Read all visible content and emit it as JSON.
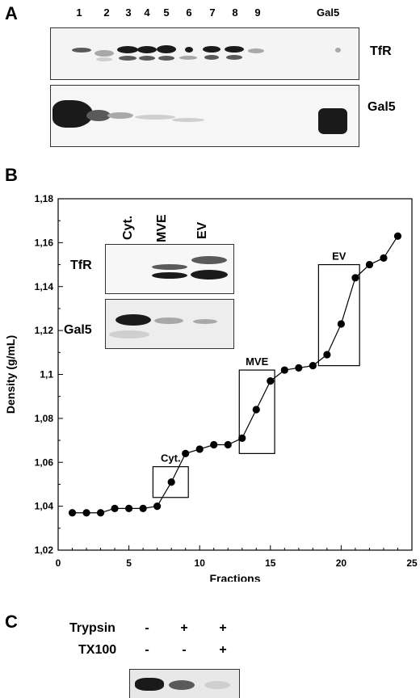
{
  "panel_a": {
    "letter": "A",
    "lanes": [
      "1",
      "2",
      "3",
      "4",
      "5",
      "6",
      "7",
      "8",
      "9"
    ],
    "control_lane": "Gal5",
    "blot_labels": [
      "TfR",
      "Gal5"
    ]
  },
  "panel_b": {
    "letter": "B",
    "inset": {
      "columns": [
        "Cyt.",
        "MVE",
        "EV"
      ],
      "row_labels": [
        "TfR",
        "Gal5"
      ]
    }
  },
  "panel_c": {
    "letter": "C",
    "row1_label": "Trypsin",
    "row1_symbols": [
      "-",
      "+",
      "+"
    ],
    "row2_label": "TX100",
    "row2_symbols": [
      "-",
      "-",
      "+"
    ]
  },
  "chart_data": {
    "type": "scatter",
    "xlabel": "Fractions",
    "ylabel": "Density (g/mL)",
    "xlim": [
      0,
      25
    ],
    "ylim": [
      1.02,
      1.18
    ],
    "x_ticks": [
      "0",
      "5",
      "10",
      "15",
      "20",
      "25"
    ],
    "y_ticks": [
      "1,02",
      "1,04",
      "1,06",
      "1,08",
      "1,1",
      "1,12",
      "1,14",
      "1,16",
      "1,18"
    ],
    "x": [
      1,
      2,
      3,
      4,
      5,
      6,
      7,
      8,
      9,
      10,
      11,
      12,
      13,
      14,
      15,
      16,
      17,
      18,
      19,
      20,
      21,
      22,
      23,
      24
    ],
    "y": [
      1.037,
      1.037,
      1.037,
      1.039,
      1.039,
      1.039,
      1.04,
      1.051,
      1.064,
      1.066,
      1.068,
      1.068,
      1.071,
      1.084,
      1.097,
      1.102,
      1.103,
      1.104,
      1.109,
      1.123,
      1.144,
      1.15,
      1.153,
      1.163
    ],
    "boxes": [
      {
        "label": "Cyt.",
        "x_range": [
          6.7,
          9.2
        ],
        "y_range": [
          1.044,
          1.058
        ]
      },
      {
        "label": "MVE",
        "x_range": [
          12.8,
          15.3
        ],
        "y_range": [
          1.064,
          1.102
        ]
      },
      {
        "label": "EV",
        "x_range": [
          18.4,
          21.3
        ],
        "y_range": [
          1.104,
          1.15
        ]
      }
    ]
  }
}
